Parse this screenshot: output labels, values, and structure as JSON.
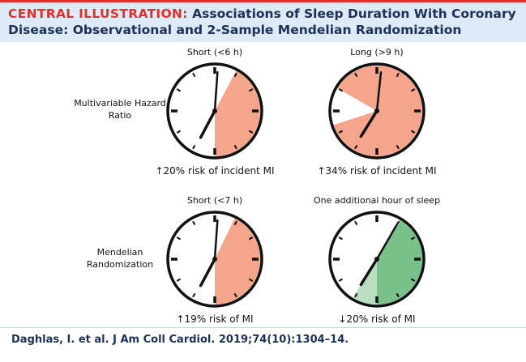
{
  "header": {
    "label": "CENTRAL ILLUSTRATION:",
    "title": "Associations of Sleep Duration With Coronary Disease: Observational and 2-Sample Mendelian Randomization"
  },
  "rows": [
    {
      "label": "Multivariable Hazard Ratio",
      "panels": [
        {
          "title": "Short (<6 h)",
          "caption": "↑20% risk of incident MI"
        },
        {
          "title": "Long (>9 h)",
          "caption": "↑34% risk of incident MI"
        }
      ]
    },
    {
      "label": "Mendelian Randomization",
      "panels": [
        {
          "title": "Short (<7 h)",
          "caption": "↑19% risk of MI"
        },
        {
          "title": "One additional hour of sleep",
          "caption": "↓20% risk of MI"
        }
      ]
    }
  ],
  "footer": "Daghlas, I. et al. J Am Coll Cardiol. 2019;74(10):1304–14."
}
